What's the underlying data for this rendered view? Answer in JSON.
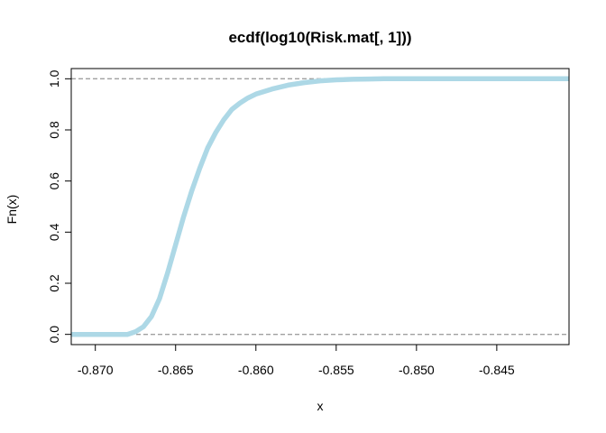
{
  "chart_data": {
    "type": "line",
    "title": "ecdf(log10(Risk.mat[, 1]))",
    "xlabel": "x",
    "ylabel": "Fn(x)",
    "xlim": [
      -0.8715,
      -0.8405
    ],
    "ylim": [
      -0.04,
      1.04
    ],
    "x_ticks": [
      -0.87,
      -0.865,
      -0.86,
      -0.855,
      -0.85,
      -0.845
    ],
    "x_tick_labels": [
      "-0.870",
      "-0.865",
      "-0.860",
      "-0.855",
      "-0.850",
      "-0.845"
    ],
    "y_ticks": [
      0.0,
      0.2,
      0.4,
      0.6,
      0.8,
      1.0
    ],
    "y_tick_labels": [
      "0.0",
      "0.2",
      "0.4",
      "0.6",
      "0.8",
      "1.0"
    ],
    "reference_lines": [
      0,
      1
    ],
    "series": [
      {
        "color": "#add8e6",
        "x": [
          -0.8715,
          -0.868,
          -0.8675,
          -0.867,
          -0.8665,
          -0.866,
          -0.8655,
          -0.865,
          -0.8645,
          -0.864,
          -0.8635,
          -0.863,
          -0.8625,
          -0.862,
          -0.8615,
          -0.861,
          -0.8605,
          -0.86,
          -0.859,
          -0.858,
          -0.857,
          -0.856,
          -0.855,
          -0.854,
          -0.853,
          -0.852,
          -0.8405
        ],
        "y": [
          0.0,
          0.0,
          0.01,
          0.03,
          0.07,
          0.14,
          0.24,
          0.35,
          0.46,
          0.56,
          0.65,
          0.73,
          0.79,
          0.84,
          0.88,
          0.905,
          0.925,
          0.94,
          0.96,
          0.975,
          0.985,
          0.992,
          0.996,
          0.998,
          0.999,
          1.0,
          1.0
        ]
      }
    ]
  }
}
